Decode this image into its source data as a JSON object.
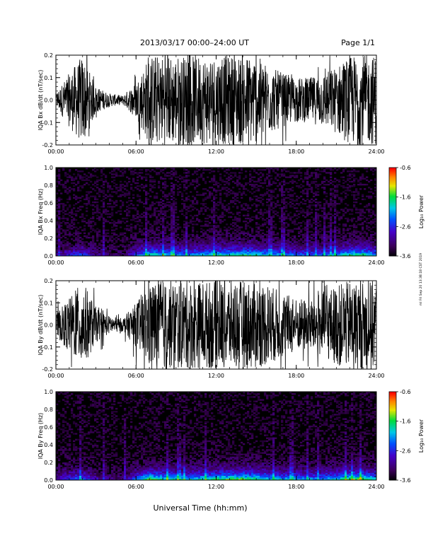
{
  "header": {
    "title": "2013/03/17  00:00–24:00 UT",
    "page": "Page 1/1"
  },
  "footer": {
    "xlabel": "Universal Time (hh:mm)",
    "side_note": "ml Fri Sep 20 13:38:18 CST 2019"
  },
  "colorbar": {
    "label": "Log₁₀ Power",
    "ticks": [
      "-0.6",
      "-1.6",
      "-2.6",
      "-3.6"
    ],
    "range": [
      -3.6,
      -0.6
    ]
  },
  "chart_data": [
    {
      "type": "line",
      "ylabel": "IQA Bx dB/dt (nT/sec)",
      "ylim": [
        -0.2,
        0.2
      ],
      "yticks": [
        "0.2",
        "0.1",
        "0.0",
        "-0.1",
        "-0.2"
      ],
      "xlim": [
        "00:00",
        "24:00"
      ],
      "xticks": [
        "00:00",
        "06:00",
        "12:00",
        "18:00",
        "24:00"
      ],
      "x_hours": [
        0,
        1,
        2,
        3,
        4,
        5,
        6,
        7,
        8,
        9,
        10,
        11,
        12,
        13,
        14,
        15,
        16,
        17,
        18,
        19,
        20,
        21,
        22,
        23,
        24
      ],
      "amplitude_envelope": [
        0.03,
        0.12,
        0.2,
        0.06,
        0.03,
        0.02,
        0.08,
        0.2,
        0.2,
        0.2,
        0.2,
        0.2,
        0.2,
        0.2,
        0.2,
        0.2,
        0.15,
        0.12,
        0.1,
        0.1,
        0.12,
        0.15,
        0.2,
        0.2,
        0.2
      ]
    },
    {
      "type": "heatmap",
      "ylabel": "IQA Bx Freq (Hz)",
      "ylim": [
        0.0,
        1.0
      ],
      "yticks": [
        "1.0",
        "0.8",
        "0.6",
        "0.4",
        "0.2",
        "0.0"
      ],
      "xlim": [
        "00:00",
        "24:00"
      ],
      "xticks": [
        "00:00",
        "06:00",
        "12:00",
        "18:00",
        "24:00"
      ],
      "colorscale": "rainbow",
      "x_hours": [
        0,
        1,
        2,
        3,
        4,
        5,
        6,
        7,
        8,
        9,
        10,
        11,
        12,
        13,
        14,
        15,
        16,
        17,
        18,
        19,
        20,
        21,
        22,
        23,
        24
      ],
      "low_freq_power_log10": [
        -3.2,
        -2.6,
        -2.4,
        -3.0,
        -3.2,
        -3.3,
        -2.4,
        -1.6,
        -1.8,
        -2.0,
        -2.1,
        -1.9,
        -1.8,
        -1.7,
        -1.6,
        -1.7,
        -2.0,
        -2.1,
        -2.2,
        -2.3,
        -2.2,
        -2.0,
        -1.6,
        -1.5,
        -2.0
      ]
    },
    {
      "type": "line",
      "ylabel": "IQA By dB/dt (nT/sec)",
      "ylim": [
        -0.2,
        0.2
      ],
      "yticks": [
        "0.2",
        "0.1",
        "0.0",
        "-0.1",
        "-0.2"
      ],
      "xlim": [
        "00:00",
        "24:00"
      ],
      "xticks": [
        "00:00",
        "06:00",
        "12:00",
        "18:00",
        "24:00"
      ],
      "x_hours": [
        0,
        1,
        2,
        3,
        4,
        5,
        6,
        7,
        8,
        9,
        10,
        11,
        12,
        13,
        14,
        15,
        16,
        17,
        18,
        19,
        20,
        21,
        22,
        23,
        24
      ],
      "amplitude_envelope": [
        0.05,
        0.12,
        0.2,
        0.08,
        0.04,
        0.03,
        0.1,
        0.2,
        0.2,
        0.2,
        0.2,
        0.2,
        0.2,
        0.2,
        0.2,
        0.2,
        0.18,
        0.15,
        0.12,
        0.12,
        0.15,
        0.18,
        0.2,
        0.2,
        0.2
      ]
    },
    {
      "type": "heatmap",
      "ylabel": "IQA By Freq (Hz)",
      "ylim": [
        0.0,
        1.0
      ],
      "yticks": [
        "1.0",
        "0.8",
        "0.6",
        "0.4",
        "0.2",
        "0.0"
      ],
      "xlim": [
        "00:00",
        "24:00"
      ],
      "xticks": [
        "00:00",
        "06:00",
        "12:00",
        "18:00",
        "24:00"
      ],
      "colorscale": "rainbow",
      "x_hours": [
        0,
        1,
        2,
        3,
        4,
        5,
        6,
        7,
        8,
        9,
        10,
        11,
        12,
        13,
        14,
        15,
        16,
        17,
        18,
        19,
        20,
        21,
        22,
        23,
        24
      ],
      "low_freq_power_log10": [
        -3.0,
        -2.4,
        -2.2,
        -2.9,
        -3.1,
        -3.2,
        -2.2,
        -1.4,
        -1.6,
        -1.8,
        -1.9,
        -1.7,
        -1.5,
        -1.4,
        -1.3,
        -1.5,
        -1.8,
        -1.9,
        -2.0,
        -2.1,
        -2.0,
        -1.8,
        -1.4,
        -1.3,
        -1.8
      ]
    }
  ]
}
